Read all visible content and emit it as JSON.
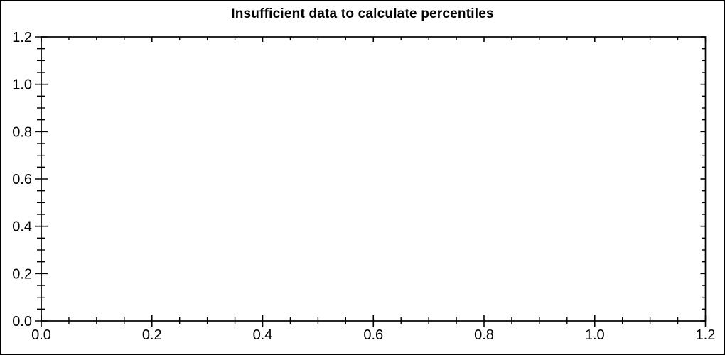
{
  "chart_data": {
    "type": "scatter",
    "title": "Insufficient data to calculate percentiles",
    "points": [],
    "series": [],
    "xlabel": "",
    "ylabel": "",
    "xlim": [
      0.0,
      1.2
    ],
    "ylim": [
      0.0,
      1.2
    ],
    "x_major_ticks": [
      0.0,
      0.2,
      0.4,
      0.6,
      0.8,
      1.0,
      1.2
    ],
    "y_major_ticks": [
      0.0,
      0.2,
      0.4,
      0.6,
      0.8,
      1.0,
      1.2
    ],
    "x_tick_labels": [
      "0.0",
      "0.2",
      "0.4",
      "0.6",
      "0.8",
      "1.0",
      "1.2"
    ],
    "y_tick_labels": [
      "1.2",
      "1.0",
      "0.8",
      "0.6",
      "0.4",
      "0.2",
      "0.0"
    ],
    "minor_tick_interval": 0.05,
    "grid": false,
    "legend": null,
    "colors": {
      "axis": "#000000",
      "text": "#000000",
      "background": "#ffffff",
      "frame_border": "#000000"
    }
  }
}
